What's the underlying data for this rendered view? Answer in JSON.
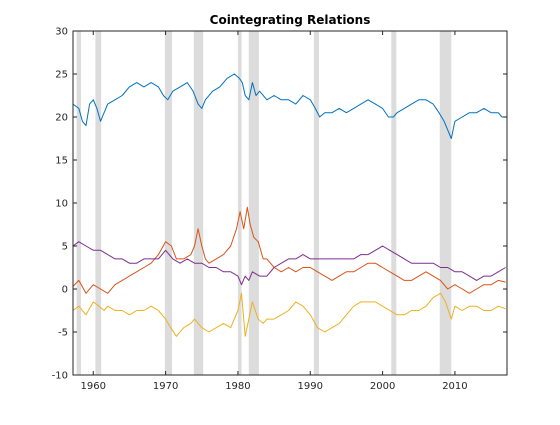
{
  "chart_data": {
    "type": "line",
    "title": "Cointegrating Relations",
    "xlim": [
      1957.2,
      2017.2
    ],
    "ylim": [
      -10,
      30
    ],
    "x_ticks": [
      1960,
      1970,
      1980,
      1990,
      2000,
      2010
    ],
    "x_tick_labels": [
      "1960",
      "1970",
      "1980",
      "1990",
      "2000",
      "2010"
    ],
    "y_ticks": [
      -10,
      -5,
      0,
      5,
      10,
      15,
      20,
      25,
      30
    ],
    "y_tick_labels": [
      "-10",
      "-5",
      "0",
      "5",
      "10",
      "15",
      "20",
      "25",
      "30"
    ],
    "grid": false,
    "legend": false,
    "recession_shading": [
      [
        1957.7,
        1958.3
      ],
      [
        1960.3,
        1961.1
      ],
      [
        1969.9,
        1970.9
      ],
      [
        1973.9,
        1975.2
      ],
      [
        1980.0,
        1980.5
      ],
      [
        1981.5,
        1982.9
      ],
      [
        1990.5,
        1991.2
      ],
      [
        2001.2,
        2001.9
      ],
      [
        2007.9,
        2009.5
      ]
    ],
    "series": [
      {
        "color": "#0072BD",
        "x": [
          1957.2,
          1958.0,
          1958.5,
          1959.0,
          1959.5,
          1960.0,
          1960.5,
          1961.0,
          1961.5,
          1962.0,
          1963.0,
          1964.0,
          1965.0,
          1966.0,
          1967.0,
          1968.0,
          1969.0,
          1969.7,
          1970.3,
          1971.0,
          1972.0,
          1973.0,
          1973.8,
          1974.5,
          1975.0,
          1975.5,
          1976.5,
          1977.5,
          1978.5,
          1979.5,
          1980.2,
          1980.6,
          1981.0,
          1981.5,
          1982.0,
          1982.5,
          1983.0,
          1984.0,
          1985.0,
          1986.0,
          1987.0,
          1988.0,
          1989.0,
          1990.0,
          1990.7,
          1991.3,
          1992.0,
          1993.0,
          1994.0,
          1995.0,
          1996.0,
          1997.0,
          1998.0,
          1999.0,
          2000.0,
          2000.8,
          2001.5,
          2002.0,
          2003.0,
          2004.0,
          2005.0,
          2006.0,
          2007.0,
          2007.8,
          2008.5,
          2009.0,
          2009.5,
          2010.0,
          2011.0,
          2012.0,
          2013.0,
          2014.0,
          2015.0,
          2016.0,
          2016.5,
          2017.0
        ],
        "y": [
          21.5,
          21.0,
          19.5,
          19.0,
          21.5,
          22.0,
          21.0,
          19.5,
          20.5,
          21.5,
          22.0,
          22.5,
          23.5,
          24.0,
          23.5,
          24.0,
          23.5,
          22.5,
          22.0,
          23.0,
          23.5,
          24.0,
          23.0,
          21.5,
          21.0,
          22.0,
          23.0,
          23.5,
          24.5,
          25.0,
          24.5,
          24.0,
          22.5,
          22.0,
          24.0,
          22.5,
          23.0,
          22.0,
          22.5,
          22.0,
          22.0,
          21.5,
          22.5,
          22.0,
          21.0,
          20.0,
          20.5,
          20.5,
          21.0,
          20.5,
          21.0,
          21.5,
          22.0,
          21.5,
          21.0,
          20.0,
          20.0,
          20.5,
          21.0,
          21.5,
          22.0,
          22.0,
          21.5,
          20.5,
          19.5,
          18.5,
          17.5,
          19.5,
          20.0,
          20.5,
          20.5,
          21.0,
          20.5,
          20.5,
          20.0,
          20.0
        ]
      },
      {
        "color": "#D95319",
        "x": [
          1957.2,
          1958.0,
          1959.0,
          1960.0,
          1961.0,
          1962.0,
          1963.0,
          1964.0,
          1965.0,
          1966.0,
          1967.0,
          1968.0,
          1969.0,
          1970.0,
          1970.8,
          1971.5,
          1972.5,
          1973.5,
          1974.0,
          1974.5,
          1975.0,
          1975.5,
          1976.0,
          1977.0,
          1978.0,
          1979.0,
          1979.8,
          1980.3,
          1980.8,
          1981.3,
          1981.7,
          1982.2,
          1982.8,
          1983.5,
          1984.0,
          1985.0,
          1986.0,
          1987.0,
          1988.0,
          1989.0,
          1990.0,
          1991.0,
          1992.0,
          1993.0,
          1994.0,
          1995.0,
          1996.0,
          1997.0,
          1998.0,
          1999.0,
          2000.0,
          2001.0,
          2002.0,
          2003.0,
          2004.0,
          2005.0,
          2006.0,
          2007.0,
          2008.0,
          2009.0,
          2010.0,
          2011.0,
          2012.0,
          2013.0,
          2014.0,
          2015.0,
          2016.0,
          2017.0
        ],
        "y": [
          0.3,
          1.0,
          -0.5,
          0.5,
          0.0,
          -0.5,
          0.5,
          1.0,
          1.5,
          2.0,
          2.5,
          3.0,
          4.0,
          5.5,
          5.0,
          3.5,
          3.5,
          4.0,
          5.0,
          7.0,
          5.0,
          3.5,
          3.0,
          3.5,
          4.0,
          5.0,
          7.0,
          9.0,
          7.0,
          9.5,
          7.5,
          6.0,
          5.5,
          3.5,
          3.5,
          2.5,
          2.0,
          2.5,
          2.0,
          2.5,
          2.5,
          2.0,
          1.5,
          1.0,
          1.5,
          2.0,
          2.0,
          2.5,
          3.0,
          3.0,
          2.5,
          2.0,
          1.5,
          1.0,
          1.0,
          1.5,
          2.0,
          1.5,
          1.0,
          0.0,
          0.5,
          0.0,
          -0.5,
          0.0,
          0.5,
          0.5,
          1.0,
          0.8
        ]
      },
      {
        "color": "#7E2F8E",
        "x": [
          1957.2,
          1958.0,
          1959.0,
          1960.0,
          1961.0,
          1962.0,
          1963.0,
          1964.0,
          1965.0,
          1966.0,
          1967.0,
          1968.0,
          1969.0,
          1970.0,
          1971.0,
          1972.0,
          1973.0,
          1974.0,
          1975.0,
          1976.0,
          1977.0,
          1978.0,
          1979.0,
          1980.0,
          1980.5,
          1981.0,
          1981.5,
          1982.0,
          1983.0,
          1984.0,
          1985.0,
          1986.0,
          1987.0,
          1988.0,
          1989.0,
          1990.0,
          1991.0,
          1992.0,
          1993.0,
          1994.0,
          1995.0,
          1996.0,
          1997.0,
          1998.0,
          1999.0,
          2000.0,
          2001.0,
          2002.0,
          2003.0,
          2004.0,
          2005.0,
          2006.0,
          2007.0,
          2008.0,
          2009.0,
          2010.0,
          2011.0,
          2012.0,
          2013.0,
          2014.0,
          2015.0,
          2016.0,
          2017.0
        ],
        "y": [
          5.0,
          5.5,
          5.0,
          4.5,
          4.5,
          4.0,
          3.5,
          3.5,
          3.0,
          3.0,
          3.5,
          3.5,
          3.5,
          4.5,
          3.5,
          3.0,
          3.5,
          3.0,
          3.0,
          2.5,
          2.5,
          2.0,
          2.0,
          1.5,
          0.5,
          1.5,
          1.0,
          2.0,
          1.5,
          1.5,
          2.5,
          3.0,
          3.5,
          3.5,
          4.0,
          3.5,
          3.5,
          3.5,
          3.5,
          3.5,
          3.5,
          3.5,
          4.0,
          4.0,
          4.5,
          5.0,
          4.5,
          4.0,
          3.5,
          3.0,
          3.0,
          3.0,
          3.0,
          2.5,
          2.5,
          2.0,
          2.0,
          1.5,
          1.0,
          1.5,
          1.5,
          2.0,
          2.5
        ]
      },
      {
        "color": "#EDB120",
        "x": [
          1957.2,
          1958.0,
          1959.0,
          1960.0,
          1960.8,
          1961.5,
          1962.0,
          1963.0,
          1964.0,
          1965.0,
          1966.0,
          1967.0,
          1968.0,
          1969.0,
          1970.0,
          1970.7,
          1971.5,
          1972.5,
          1973.5,
          1974.0,
          1975.0,
          1976.0,
          1977.0,
          1978.0,
          1979.0,
          1980.0,
          1980.5,
          1981.0,
          1981.5,
          1982.0,
          1982.8,
          1983.5,
          1984.0,
          1985.0,
          1986.0,
          1987.0,
          1988.0,
          1989.0,
          1990.0,
          1991.0,
          1992.0,
          1993.0,
          1994.0,
          1995.0,
          1996.0,
          1997.0,
          1998.0,
          1999.0,
          2000.0,
          2001.0,
          2002.0,
          2003.0,
          2004.0,
          2005.0,
          2006.0,
          2007.0,
          2008.0,
          2008.7,
          2009.5,
          2010.0,
          2011.0,
          2012.0,
          2013.0,
          2014.0,
          2015.0,
          2016.0,
          2017.0
        ],
        "y": [
          -2.5,
          -2.0,
          -3.0,
          -1.5,
          -2.0,
          -2.5,
          -2.0,
          -2.5,
          -2.5,
          -3.0,
          -2.5,
          -2.5,
          -2.0,
          -2.5,
          -3.5,
          -4.5,
          -5.5,
          -4.5,
          -4.0,
          -3.5,
          -4.5,
          -5.0,
          -4.5,
          -4.0,
          -4.5,
          -2.5,
          -0.5,
          -5.5,
          -3.5,
          -1.5,
          -3.5,
          -4.0,
          -3.5,
          -3.5,
          -3.0,
          -2.5,
          -1.5,
          -2.0,
          -3.0,
          -4.5,
          -5.0,
          -4.5,
          -4.0,
          -3.0,
          -2.0,
          -1.5,
          -1.5,
          -1.5,
          -2.0,
          -2.5,
          -3.0,
          -3.0,
          -2.5,
          -2.5,
          -2.0,
          -1.0,
          -0.5,
          -1.5,
          -3.5,
          -2.0,
          -2.5,
          -2.0,
          -2.0,
          -2.5,
          -2.5,
          -2.0,
          -2.3
        ]
      }
    ]
  }
}
